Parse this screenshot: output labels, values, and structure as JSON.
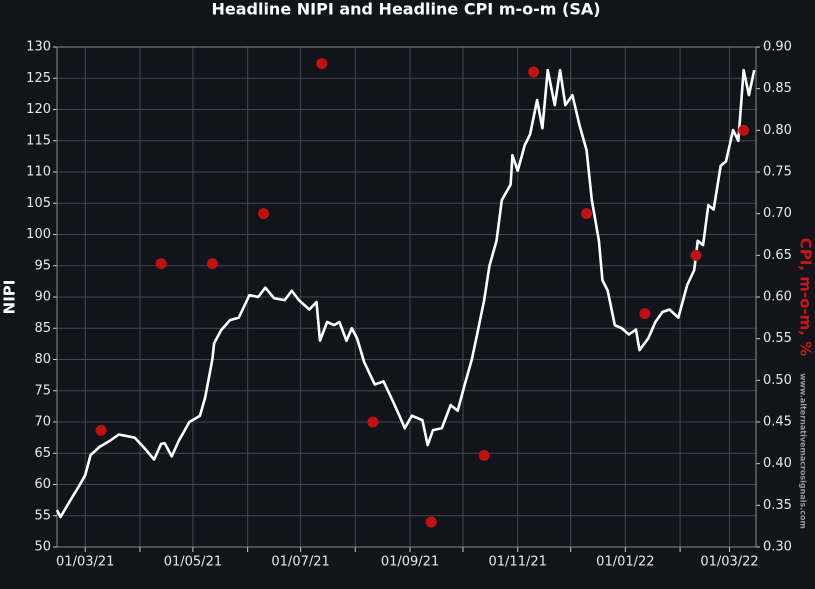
{
  "chart_data": {
    "type": "combo",
    "title": "Headline NIPI and Headline CPI m-o-m (SA)",
    "ylabel": "NIPI",
    "y2label": "CPI, m-o-m, %",
    "watermark": "www.alternativemacrosignals.com",
    "grid": true,
    "background": "#12141c",
    "xlim": [
      "2021-02-13",
      "2022-03-16"
    ],
    "xticks": [
      {
        "value": "2021-03-01",
        "label": "01/03/21"
      },
      {
        "value": "2021-04-01",
        "label": null
      },
      {
        "value": "2021-05-01",
        "label": "01/05/21"
      },
      {
        "value": "2021-06-01",
        "label": null
      },
      {
        "value": "2021-07-01",
        "label": "01/07/21"
      },
      {
        "value": "2021-08-01",
        "label": null
      },
      {
        "value": "2021-09-01",
        "label": "01/09/21"
      },
      {
        "value": "2021-10-01",
        "label": null
      },
      {
        "value": "2021-11-01",
        "label": "01/11/21"
      },
      {
        "value": "2021-12-01",
        "label": null
      },
      {
        "value": "2022-01-01",
        "label": "01/01/22"
      },
      {
        "value": "2022-02-01",
        "label": null
      },
      {
        "value": "2022-03-01",
        "label": "01/03/22"
      }
    ],
    "ylim": [
      50,
      130
    ],
    "yticks": [
      50,
      55,
      60,
      65,
      70,
      75,
      80,
      85,
      90,
      95,
      100,
      105,
      110,
      115,
      120,
      125,
      130
    ],
    "y2lim": [
      0.3,
      0.9
    ],
    "y2ticks": [
      {
        "value": 0.3,
        "label": "0.30"
      },
      0.35,
      {
        "value": 0.4,
        "label": "0.40"
      },
      0.45,
      {
        "value": 0.5,
        "label": "0.50"
      },
      0.55,
      {
        "value": 0.6,
        "label": "0.60"
      },
      0.65,
      {
        "value": 0.7,
        "label": "0.70"
      },
      0.75,
      {
        "value": 0.8,
        "label": "0.80"
      },
      0.85,
      {
        "value": 0.9,
        "label": "0.90"
      }
    ],
    "series": [
      {
        "type": "line",
        "color": "#ffffff",
        "x": [
          "2021-02-13",
          "2021-02-15",
          "2021-02-20",
          "2021-02-26",
          "2021-03-01",
          "2021-03-04",
          "2021-03-09",
          "2021-03-15",
          "2021-03-20",
          "2021-03-29",
          "2021-04-03",
          "2021-04-09",
          "2021-04-13",
          "2021-04-15",
          "2021-04-19",
          "2021-04-23",
          "2021-04-29",
          "2021-05-05",
          "2021-05-08",
          "2021-05-12",
          "2021-05-13",
          "2021-05-17",
          "2021-05-22",
          "2021-05-27",
          "2021-06-02",
          "2021-06-07",
          "2021-06-11",
          "2021-06-16",
          "2021-06-22",
          "2021-06-26",
          "2021-06-30",
          "2021-07-06",
          "2021-07-10",
          "2021-07-12",
          "2021-07-16",
          "2021-07-20",
          "2021-07-23",
          "2021-07-27",
          "2021-07-30",
          "2021-08-02",
          "2021-08-06",
          "2021-08-12",
          "2021-08-17",
          "2021-08-22",
          "2021-08-26",
          "2021-08-29",
          "2021-09-02",
          "2021-09-08",
          "2021-09-11",
          "2021-09-14",
          "2021-09-19",
          "2021-09-24",
          "2021-09-28",
          "2021-10-02",
          "2021-10-06",
          "2021-10-09",
          "2021-10-13",
          "2021-10-16",
          "2021-10-20",
          "2021-10-23",
          "2021-10-28",
          "2021-10-29",
          "2021-11-01",
          "2021-11-05",
          "2021-11-08",
          "2021-11-12",
          "2021-11-15",
          "2021-11-18",
          "2021-11-22",
          "2021-11-25",
          "2021-11-28",
          "2021-12-02",
          "2021-12-06",
          "2021-12-10",
          "2021-12-13",
          "2021-12-17",
          "2021-12-19",
          "2021-12-22",
          "2021-12-26",
          "2021-12-30",
          "2022-01-03",
          "2022-01-07",
          "2022-01-09",
          "2022-01-14",
          "2022-01-18",
          "2022-01-22",
          "2022-01-26",
          "2022-01-31",
          "2022-02-05",
          "2022-02-09",
          "2022-02-11",
          "2022-02-14",
          "2022-02-17",
          "2022-02-20",
          "2022-02-24",
          "2022-02-27",
          "2022-03-03",
          "2022-03-06",
          "2022-03-09",
          "2022-03-12",
          "2022-03-15"
        ],
        "values": [
          55.9,
          54.8,
          57.2,
          60,
          61.5,
          64.7,
          66,
          67,
          68,
          67.5,
          66,
          64,
          66.5,
          66.6,
          64.5,
          67,
          70,
          71,
          74,
          80,
          82.6,
          84.7,
          86.3,
          86.7,
          90.3,
          90,
          91.5,
          89.8,
          89.5,
          91,
          89.5,
          88,
          89.2,
          83,
          86,
          85.5,
          86,
          83,
          85,
          83.4,
          79.6,
          76,
          76.5,
          73.5,
          71,
          69,
          71,
          70.3,
          66.3,
          68.7,
          69,
          72.7,
          71.8,
          76,
          80,
          84,
          89.5,
          95,
          99,
          105.5,
          108,
          112.7,
          110.2,
          114.3,
          116,
          121.5,
          117,
          126.3,
          120.7,
          126.3,
          120.7,
          122.3,
          117.5,
          113.5,
          105.5,
          99,
          92.7,
          91,
          85.5,
          85,
          84,
          84.8,
          81.5,
          83.4,
          86,
          87.6,
          88,
          86.7,
          91.9,
          94.3,
          99,
          98.3,
          104.7,
          104,
          111,
          111.7,
          116.7,
          115,
          126.3,
          122.3,
          126.3
        ]
      },
      {
        "type": "scatter",
        "axis": "y2",
        "color": "#c01010",
        "x": [
          "2021-03-10",
          "2021-04-13",
          "2021-05-12",
          "2021-06-10",
          "2021-07-13",
          "2021-08-11",
          "2021-09-13",
          "2021-10-13",
          "2021-11-10",
          "2021-12-10",
          "2022-01-12",
          "2022-02-10",
          "2022-03-09"
        ],
        "values": [
          0.44,
          0.64,
          0.64,
          0.7,
          0.88,
          0.45,
          0.33,
          0.41,
          0.87,
          0.7,
          0.58,
          0.65,
          0.8
        ]
      }
    ]
  }
}
